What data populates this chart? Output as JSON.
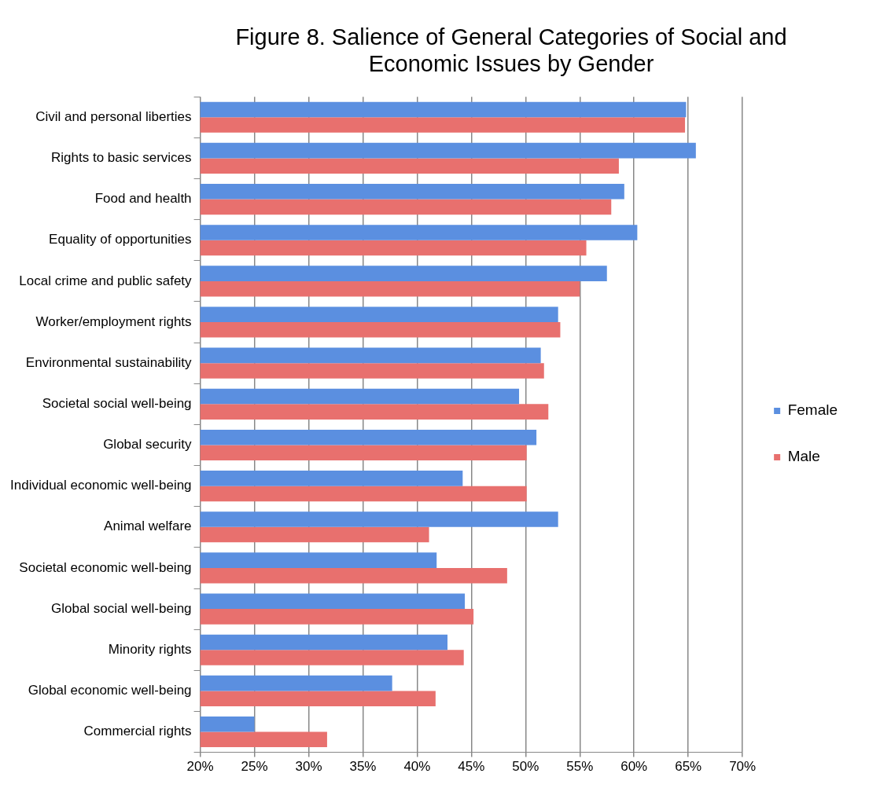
{
  "chart_data": {
    "type": "bar",
    "orientation": "horizontal",
    "title": "Figure 8. Salience of General Categories of Social and Economic Issues by Gender",
    "categories": [
      "Civil and personal liberties",
      "Rights to basic services",
      "Food and health",
      "Equality of opportunities",
      "Local crime and public safety",
      "Worker/employment rights",
      "Environmental sustainability",
      "Societal social well-being",
      "Global security",
      "Individual economic well-being",
      "Animal welfare",
      "Societal economic well-being",
      "Global social well-being",
      "Minority rights",
      "Global economic well-being",
      "Commercial rights"
    ],
    "series": [
      {
        "name": "Female",
        "color": "#5b8fe0",
        "values": [
          64.8,
          65.7,
          59.1,
          60.3,
          57.5,
          53.0,
          51.4,
          49.4,
          51.0,
          44.2,
          53.0,
          41.8,
          44.4,
          42.8,
          37.7,
          25.0
        ]
      },
      {
        "name": "Male",
        "color": "#e8706e",
        "values": [
          64.7,
          58.6,
          57.9,
          55.6,
          55.0,
          53.2,
          51.7,
          52.1,
          50.1,
          50.1,
          41.1,
          48.3,
          45.2,
          44.3,
          41.7,
          31.7
        ]
      }
    ],
    "xlim": [
      20,
      70
    ],
    "xticks": [
      {
        "value": 20,
        "label": "20%"
      },
      {
        "value": 25,
        "label": "25%"
      },
      {
        "value": 30,
        "label": "30%"
      },
      {
        "value": 35,
        "label": "35%"
      },
      {
        "value": 40,
        "label": "40%"
      },
      {
        "value": 45,
        "label": "45%"
      },
      {
        "value": 50,
        "label": "50%"
      },
      {
        "value": 55,
        "label": "55%"
      },
      {
        "value": 60,
        "label": "60%"
      },
      {
        "value": 65,
        "label": "65%"
      },
      {
        "value": 70,
        "label": "70%"
      }
    ],
    "grid": "x",
    "legend": "right"
  }
}
